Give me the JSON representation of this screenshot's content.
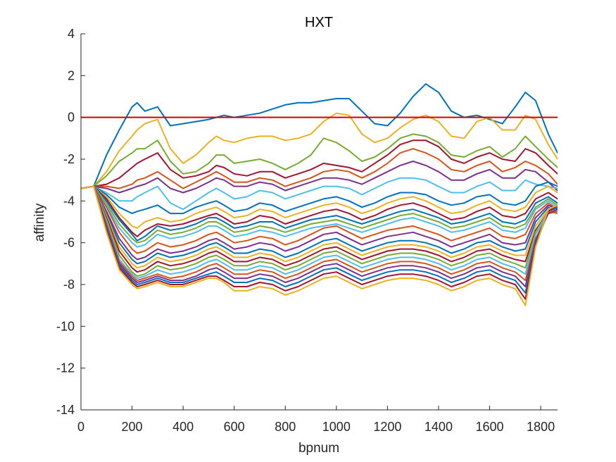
{
  "chart_data": {
    "type": "line",
    "title": "HXT",
    "xlabel": "bpnum",
    "ylabel": "affinity",
    "xlim": [
      0,
      1866
    ],
    "ylim": [
      -14,
      4
    ],
    "x_ticks": [
      "0",
      "200",
      "400",
      "600",
      "800",
      "1000",
      "1200",
      "1400",
      "1600",
      "1800"
    ],
    "y_ticks": [
      "4",
      "2",
      "0",
      "-2",
      "-4",
      "-6",
      "-8",
      "-10",
      "-12",
      "-14"
    ],
    "grid": false,
    "legend": "none",
    "reference_line": {
      "y": 0,
      "color": "#d40000"
    },
    "x": [
      0,
      50,
      100,
      150,
      200,
      220,
      250,
      300,
      350,
      400,
      450,
      500,
      530,
      560,
      600,
      650,
      700,
      750,
      800,
      850,
      900,
      950,
      1000,
      1050,
      1100,
      1150,
      1200,
      1250,
      1300,
      1350,
      1400,
      1450,
      1500,
      1550,
      1600,
      1650,
      1700,
      1740,
      1780,
      1830,
      1866
    ],
    "series": [
      {
        "color": "#0072BD",
        "values": [
          -3.4,
          -3.3,
          -1.8,
          -0.6,
          0.5,
          0.7,
          0.3,
          0.5,
          -0.4,
          -0.3,
          -0.2,
          -0.1,
          0.0,
          0.1,
          0.0,
          0.1,
          0.2,
          0.4,
          0.6,
          0.7,
          0.7,
          0.8,
          0.9,
          0.9,
          0.3,
          -0.3,
          -0.4,
          0.2,
          1.0,
          1.6,
          1.2,
          0.3,
          0.0,
          0.1,
          -0.1,
          -0.3,
          0.5,
          1.2,
          0.8,
          -0.8,
          -1.7
        ]
      },
      {
        "color": "#EDB120",
        "values": [
          -3.4,
          -3.3,
          -2.6,
          -1.6,
          -0.9,
          -0.6,
          -0.3,
          -0.1,
          -1.5,
          -2.2,
          -1.8,
          -1.2,
          -0.9,
          -1.1,
          -1.2,
          -1.0,
          -0.9,
          -0.9,
          -1.1,
          -1.0,
          -0.8,
          -0.2,
          0.2,
          0.1,
          -0.8,
          -1.2,
          -1.0,
          -0.5,
          -0.1,
          0.1,
          -0.2,
          -0.9,
          -1.0,
          -0.2,
          0.0,
          -0.6,
          -0.6,
          0.1,
          -0.1,
          -1.3,
          -2.0
        ]
      },
      {
        "color": "#77AC30",
        "values": [
          -3.4,
          -3.3,
          -2.8,
          -2.1,
          -1.7,
          -1.5,
          -1.5,
          -1.1,
          -2.1,
          -2.7,
          -2.6,
          -2.2,
          -1.8,
          -1.8,
          -2.2,
          -2.1,
          -2.0,
          -2.2,
          -2.5,
          -2.2,
          -1.8,
          -1.0,
          -1.2,
          -1.6,
          -2.1,
          -1.9,
          -1.5,
          -1.0,
          -0.8,
          -0.9,
          -1.2,
          -1.8,
          -1.9,
          -1.6,
          -1.4,
          -1.9,
          -1.5,
          -0.9,
          -1.4,
          -2.0,
          -2.4
        ]
      },
      {
        "color": "#A2142F",
        "values": [
          -3.4,
          -3.3,
          -3.2,
          -2.9,
          -2.4,
          -2.2,
          -2.0,
          -1.7,
          -2.5,
          -2.9,
          -2.8,
          -2.6,
          -2.3,
          -2.4,
          -2.7,
          -2.8,
          -2.6,
          -2.6,
          -2.9,
          -2.7,
          -2.5,
          -2.2,
          -2.3,
          -2.4,
          -2.6,
          -2.2,
          -1.8,
          -1.3,
          -1.1,
          -1.1,
          -1.4,
          -2.0,
          -2.2,
          -1.9,
          -1.7,
          -2.0,
          -2.1,
          -1.5,
          -1.7,
          -2.3,
          -2.7
        ]
      },
      {
        "color": "#D95319",
        "values": [
          -3.4,
          -3.3,
          -3.3,
          -3.4,
          -3.2,
          -3.0,
          -2.9,
          -2.6,
          -3.0,
          -3.4,
          -3.1,
          -2.8,
          -2.6,
          -2.8,
          -3.1,
          -3.1,
          -2.9,
          -3.0,
          -3.3,
          -3.1,
          -2.9,
          -2.6,
          -2.5,
          -2.6,
          -2.9,
          -2.6,
          -2.2,
          -1.7,
          -1.5,
          -1.7,
          -2.0,
          -2.5,
          -2.6,
          -2.3,
          -2.1,
          -2.6,
          -2.4,
          -2.1,
          -2.3,
          -2.7,
          -3.2
        ]
      },
      {
        "color": "#7E2F8E",
        "values": [
          -3.4,
          -3.3,
          -3.4,
          -3.6,
          -3.4,
          -3.3,
          -3.2,
          -2.9,
          -3.4,
          -3.6,
          -3.4,
          -3.1,
          -2.9,
          -3.0,
          -3.3,
          -3.3,
          -3.1,
          -3.2,
          -3.5,
          -3.3,
          -3.1,
          -2.9,
          -2.9,
          -3.0,
          -3.2,
          -2.9,
          -2.6,
          -2.3,
          -2.1,
          -2.3,
          -2.6,
          -3.0,
          -3.0,
          -2.7,
          -2.5,
          -2.9,
          -2.9,
          -2.5,
          -2.6,
          -3.1,
          -3.5
        ]
      },
      {
        "color": "#4DBEEE",
        "values": [
          -3.4,
          -3.3,
          -3.6,
          -4.0,
          -4.0,
          -3.8,
          -3.6,
          -3.3,
          -4.1,
          -4.4,
          -4.0,
          -3.6,
          -3.4,
          -3.6,
          -3.9,
          -3.8,
          -3.5,
          -3.6,
          -3.9,
          -3.7,
          -3.5,
          -3.3,
          -3.3,
          -3.4,
          -3.7,
          -3.4,
          -3.1,
          -2.9,
          -2.9,
          -3.0,
          -3.3,
          -3.6,
          -3.6,
          -3.3,
          -3.1,
          -3.5,
          -3.5,
          -3.0,
          -3.2,
          -3.3,
          -3.4
        ]
      },
      {
        "color": "#0072BD",
        "values": [
          -3.4,
          -3.3,
          -3.7,
          -4.3,
          -4.6,
          -4.5,
          -4.4,
          -4.2,
          -4.6,
          -4.6,
          -4.3,
          -4.1,
          -4.0,
          -4.2,
          -4.5,
          -4.4,
          -4.1,
          -4.2,
          -4.5,
          -4.3,
          -4.1,
          -3.9,
          -3.8,
          -4.0,
          -4.3,
          -4.1,
          -3.8,
          -3.6,
          -3.6,
          -3.7,
          -4.0,
          -4.2,
          -4.1,
          -3.8,
          -3.7,
          -4.1,
          -4.2,
          -4.0,
          -3.3,
          -3.1,
          -3.3
        ]
      },
      {
        "color": "#EDB120",
        "values": [
          -3.4,
          -3.3,
          -3.8,
          -4.6,
          -5.2,
          -5.3,
          -5.0,
          -4.8,
          -5.0,
          -4.9,
          -4.6,
          -4.4,
          -4.3,
          -4.5,
          -4.8,
          -4.7,
          -4.4,
          -4.5,
          -4.8,
          -4.6,
          -4.4,
          -4.2,
          -4.1,
          -4.3,
          -4.6,
          -4.4,
          -4.1,
          -3.9,
          -3.8,
          -4.0,
          -4.3,
          -4.6,
          -4.5,
          -4.2,
          -4.0,
          -4.4,
          -4.5,
          -4.3,
          -3.6,
          -3.3,
          -3.6
        ]
      },
      {
        "color": "#A2142F",
        "values": [
          -3.4,
          -3.3,
          -3.9,
          -4.8,
          -5.5,
          -5.7,
          -5.4,
          -5.1,
          -5.2,
          -5.1,
          -4.9,
          -4.7,
          -4.6,
          -4.8,
          -5.1,
          -5.0,
          -4.7,
          -4.8,
          -5.1,
          -4.9,
          -4.7,
          -4.5,
          -4.4,
          -4.6,
          -4.9,
          -4.7,
          -4.4,
          -4.2,
          -4.1,
          -4.3,
          -4.6,
          -4.9,
          -4.8,
          -4.5,
          -4.3,
          -4.7,
          -4.8,
          -4.6,
          -3.9,
          -3.6,
          -3.9
        ]
      },
      {
        "color": "#0072BD",
        "values": [
          -3.4,
          -3.3,
          -4.0,
          -4.9,
          -5.6,
          -5.9,
          -5.7,
          -5.2,
          -5.4,
          -5.3,
          -5.1,
          -4.8,
          -4.8,
          -5.0,
          -5.3,
          -5.2,
          -5.0,
          -5.0,
          -5.3,
          -5.1,
          -4.9,
          -4.8,
          -4.7,
          -4.9,
          -5.1,
          -4.9,
          -4.7,
          -4.5,
          -4.4,
          -4.6,
          -4.8,
          -5.1,
          -5.0,
          -4.8,
          -4.6,
          -5.0,
          -5.1,
          -4.9,
          -4.1,
          -3.8,
          -4.1
        ]
      },
      {
        "color": "#77AC30",
        "values": [
          -3.4,
          -3.3,
          -4.1,
          -5.1,
          -5.8,
          -6.0,
          -5.9,
          -5.4,
          -5.6,
          -5.5,
          -5.3,
          -5.0,
          -5.0,
          -5.2,
          -5.5,
          -5.4,
          -5.2,
          -5.3,
          -5.5,
          -5.3,
          -5.1,
          -5.0,
          -4.9,
          -5.1,
          -5.3,
          -5.1,
          -4.9,
          -4.7,
          -4.6,
          -4.8,
          -5.0,
          -5.3,
          -5.2,
          -5.0,
          -4.8,
          -5.2,
          -5.3,
          -5.1,
          -4.3,
          -3.9,
          -4.2
        ]
      },
      {
        "color": "#4DBEEE",
        "values": [
          -3.4,
          -3.3,
          -4.2,
          -5.3,
          -6.0,
          -6.2,
          -6.1,
          -5.6,
          -5.8,
          -5.7,
          -5.5,
          -5.2,
          -5.2,
          -5.4,
          -5.7,
          -5.6,
          -5.4,
          -5.5,
          -5.7,
          -5.5,
          -5.3,
          -5.2,
          -5.1,
          -5.3,
          -5.5,
          -5.3,
          -5.1,
          -4.9,
          -4.8,
          -5.0,
          -5.2,
          -5.5,
          -5.4,
          -5.2,
          -5.0,
          -5.4,
          -5.5,
          -5.3,
          -4.4,
          -4.0,
          -4.3
        ]
      },
      {
        "color": "#D95319",
        "values": [
          -3.4,
          -3.3,
          -4.3,
          -5.5,
          -6.3,
          -6.5,
          -6.4,
          -6.0,
          -6.2,
          -6.1,
          -5.9,
          -5.6,
          -5.5,
          -5.7,
          -6.0,
          -5.9,
          -5.7,
          -5.8,
          -6.1,
          -5.9,
          -5.6,
          -5.3,
          -5.2,
          -5.5,
          -5.8,
          -5.6,
          -5.4,
          -5.3,
          -5.2,
          -5.4,
          -5.6,
          -5.9,
          -5.7,
          -5.5,
          -5.3,
          -5.7,
          -5.8,
          -5.6,
          -4.6,
          -4.1,
          -4.4
        ]
      },
      {
        "color": "#7E2F8E",
        "values": [
          -3.4,
          -3.3,
          -4.5,
          -5.8,
          -6.6,
          -6.8,
          -6.7,
          -6.3,
          -6.5,
          -6.4,
          -6.2,
          -5.9,
          -5.8,
          -6.0,
          -6.3,
          -6.2,
          -6.0,
          -6.1,
          -6.4,
          -6.2,
          -5.9,
          -5.6,
          -5.5,
          -5.8,
          -6.1,
          -5.9,
          -5.7,
          -5.6,
          -5.5,
          -5.7,
          -5.9,
          -6.2,
          -6.0,
          -5.8,
          -5.6,
          -6.0,
          -6.1,
          -6.0,
          -4.8,
          -4.2,
          -4.4
        ]
      },
      {
        "color": "#0072BD",
        "values": [
          -3.4,
          -3.3,
          -4.6,
          -6.0,
          -6.8,
          -7.0,
          -6.9,
          -6.5,
          -6.7,
          -6.6,
          -6.4,
          -6.1,
          -6.0,
          -6.2,
          -6.5,
          -6.5,
          -6.3,
          -6.4,
          -6.7,
          -6.5,
          -6.2,
          -5.9,
          -5.8,
          -6.1,
          -6.4,
          -6.2,
          -6.0,
          -5.9,
          -5.9,
          -6.0,
          -6.2,
          -6.5,
          -6.3,
          -6.0,
          -5.9,
          -6.2,
          -6.4,
          -6.3,
          -5.0,
          -4.3,
          -4.5
        ]
      },
      {
        "color": "#EDB120",
        "values": [
          -3.4,
          -3.3,
          -4.7,
          -6.2,
          -7.0,
          -7.2,
          -7.1,
          -6.7,
          -6.9,
          -6.8,
          -6.6,
          -6.3,
          -6.2,
          -6.4,
          -6.7,
          -6.7,
          -6.5,
          -6.6,
          -6.9,
          -6.7,
          -6.4,
          -6.1,
          -6.0,
          -6.3,
          -6.6,
          -6.4,
          -6.2,
          -6.1,
          -6.1,
          -6.2,
          -6.4,
          -6.7,
          -6.5,
          -6.2,
          -6.1,
          -6.4,
          -6.6,
          -6.6,
          -5.2,
          -4.4,
          -4.5
        ]
      },
      {
        "color": "#A2142F",
        "values": [
          -3.4,
          -3.3,
          -4.8,
          -6.4,
          -7.2,
          -7.4,
          -7.3,
          -6.9,
          -7.1,
          -7.0,
          -6.8,
          -6.5,
          -6.4,
          -6.6,
          -6.9,
          -6.9,
          -6.7,
          -6.8,
          -7.1,
          -6.9,
          -6.6,
          -6.3,
          -6.2,
          -6.5,
          -6.8,
          -6.6,
          -6.4,
          -6.3,
          -6.3,
          -6.4,
          -6.6,
          -6.9,
          -6.7,
          -6.4,
          -6.3,
          -6.6,
          -6.8,
          -6.9,
          -5.4,
          -4.5,
          -4.6
        ]
      },
      {
        "color": "#77AC30",
        "values": [
          -3.4,
          -3.3,
          -4.9,
          -6.6,
          -7.4,
          -7.6,
          -7.5,
          -7.1,
          -7.3,
          -7.2,
          -7.0,
          -6.7,
          -6.6,
          -6.8,
          -7.1,
          -7.1,
          -6.9,
          -7.0,
          -7.3,
          -7.1,
          -6.8,
          -6.5,
          -6.4,
          -6.7,
          -7.0,
          -6.8,
          -6.6,
          -6.5,
          -6.5,
          -6.6,
          -6.8,
          -7.1,
          -6.9,
          -6.6,
          -6.5,
          -6.8,
          -7.0,
          -7.2,
          -5.5,
          -4.5,
          -4.6
        ]
      },
      {
        "color": "#4DBEEE",
        "values": [
          -3.4,
          -3.3,
          -5.0,
          -6.8,
          -7.5,
          -7.7,
          -7.6,
          -7.3,
          -7.5,
          -7.4,
          -7.2,
          -6.9,
          -6.8,
          -7.0,
          -7.3,
          -7.3,
          -7.1,
          -7.2,
          -7.5,
          -7.3,
          -7.0,
          -6.7,
          -6.6,
          -6.9,
          -7.2,
          -7.0,
          -6.8,
          -6.7,
          -6.7,
          -6.8,
          -7.0,
          -7.3,
          -7.1,
          -6.8,
          -6.7,
          -7.0,
          -7.2,
          -7.5,
          -5.6,
          -4.5,
          -4.5
        ]
      },
      {
        "color": "#D95319",
        "values": [
          -3.4,
          -3.3,
          -5.1,
          -6.9,
          -7.6,
          -7.8,
          -7.7,
          -7.5,
          -7.7,
          -7.6,
          -7.4,
          -7.1,
          -7.0,
          -7.2,
          -7.5,
          -7.5,
          -7.3,
          -7.4,
          -7.7,
          -7.5,
          -7.2,
          -6.9,
          -6.8,
          -7.1,
          -7.4,
          -7.2,
          -7.0,
          -6.9,
          -6.9,
          -7.0,
          -7.2,
          -7.5,
          -7.3,
          -7.0,
          -6.9,
          -7.2,
          -7.4,
          -7.8,
          -5.8,
          -4.6,
          -4.5
        ]
      },
      {
        "color": "#7E2F8E",
        "values": [
          -3.4,
          -3.3,
          -5.2,
          -7.0,
          -7.7,
          -7.9,
          -7.8,
          -7.6,
          -7.8,
          -7.8,
          -7.6,
          -7.3,
          -7.2,
          -7.4,
          -7.7,
          -7.7,
          -7.5,
          -7.6,
          -7.9,
          -7.7,
          -7.4,
          -7.1,
          -7.0,
          -7.3,
          -7.6,
          -7.4,
          -7.2,
          -7.1,
          -7.1,
          -7.2,
          -7.4,
          -7.7,
          -7.5,
          -7.2,
          -7.1,
          -7.4,
          -7.6,
          -8.1,
          -5.9,
          -4.6,
          -4.4
        ]
      },
      {
        "color": "#0072BD",
        "values": [
          -3.4,
          -3.3,
          -5.3,
          -7.1,
          -7.8,
          -8.0,
          -7.9,
          -7.7,
          -7.9,
          -7.9,
          -7.7,
          -7.5,
          -7.4,
          -7.6,
          -7.9,
          -7.9,
          -7.7,
          -7.8,
          -8.1,
          -7.9,
          -7.6,
          -7.3,
          -7.2,
          -7.5,
          -7.8,
          -7.6,
          -7.4,
          -7.3,
          -7.3,
          -7.4,
          -7.6,
          -7.9,
          -7.7,
          -7.4,
          -7.3,
          -7.6,
          -7.8,
          -8.4,
          -6.0,
          -4.5,
          -4.3
        ]
      },
      {
        "color": "#A2142F",
        "values": [
          -3.4,
          -3.3,
          -5.4,
          -7.2,
          -7.9,
          -8.1,
          -8.0,
          -7.8,
          -8.0,
          -8.0,
          -7.8,
          -7.6,
          -7.6,
          -7.8,
          -8.1,
          -8.1,
          -7.9,
          -8.0,
          -8.3,
          -8.1,
          -7.8,
          -7.5,
          -7.4,
          -7.7,
          -8.0,
          -7.8,
          -7.6,
          -7.5,
          -7.5,
          -7.6,
          -7.8,
          -8.1,
          -7.9,
          -7.6,
          -7.5,
          -7.8,
          -8.0,
          -8.7,
          -6.1,
          -4.5,
          -4.2
        ]
      },
      {
        "color": "#EDB120",
        "values": [
          -3.4,
          -3.3,
          -5.5,
          -7.3,
          -8.0,
          -8.2,
          -8.1,
          -7.9,
          -8.1,
          -8.1,
          -7.9,
          -7.7,
          -7.7,
          -7.9,
          -8.3,
          -8.3,
          -8.1,
          -8.2,
          -8.5,
          -8.3,
          -8.0,
          -7.7,
          -7.6,
          -7.9,
          -8.2,
          -8.0,
          -7.8,
          -7.7,
          -7.7,
          -7.8,
          -8.0,
          -8.3,
          -8.1,
          -7.8,
          -7.7,
          -8.0,
          -8.2,
          -9.0,
          -6.2,
          -4.4,
          -4.2
        ]
      }
    ]
  }
}
